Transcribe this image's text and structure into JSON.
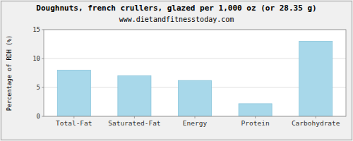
{
  "chart_data": {
    "type": "bar",
    "title": "Doughnuts, french crullers, glazed per 1,000 oz (or 28.35 g)",
    "subtitle": "www.dietandfitnesstoday.com",
    "categories": [
      "Total-Fat",
      "Saturated-Fat",
      "Energy",
      "Protein",
      "Carbohydrate"
    ],
    "values": [
      8.0,
      7.0,
      6.2,
      2.2,
      13.0
    ],
    "color": "#a8d8ea",
    "ylabel": "Percentage of RDH (%)",
    "ylim": [
      0,
      15
    ],
    "yticks": [
      0,
      5,
      10,
      15
    ],
    "grid": true
  }
}
